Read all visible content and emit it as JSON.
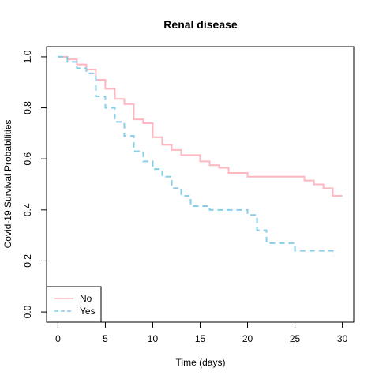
{
  "chart_data": {
    "type": "line",
    "title": "Renal disease",
    "xlabel": "Time (days)",
    "ylabel": "Covid-19 Survival Probabilities",
    "xlim": [
      -1.2,
      31.2
    ],
    "ylim": [
      -0.04,
      1.04
    ],
    "xticks": [
      0,
      5,
      10,
      15,
      20,
      25,
      30
    ],
    "xtick_labels": [
      "0",
      "5",
      "10",
      "15",
      "20",
      "25",
      "30"
    ],
    "yticks": [
      0.0,
      0.2,
      0.4,
      0.6,
      0.8,
      1.0
    ],
    "ytick_labels": [
      "0.0",
      "0.2",
      "0.4",
      "0.6",
      "0.8",
      "1.0"
    ],
    "step": true,
    "legend_position": "bottom-left",
    "series": [
      {
        "name": "No",
        "color": "#ffb6c1",
        "dash": "solid",
        "x": [
          0,
          1,
          2,
          3,
          4,
          5,
          6,
          7,
          8,
          9,
          10,
          11,
          12,
          13,
          15,
          16,
          17,
          18,
          20,
          26,
          27,
          28,
          29,
          30
        ],
        "y": [
          1.0,
          0.99,
          0.97,
          0.95,
          0.91,
          0.875,
          0.835,
          0.815,
          0.755,
          0.74,
          0.685,
          0.655,
          0.635,
          0.615,
          0.59,
          0.575,
          0.565,
          0.545,
          0.53,
          0.515,
          0.5,
          0.485,
          0.455,
          0.455
        ]
      },
      {
        "name": "Yes",
        "color": "#87ceeb",
        "dash": "dashed",
        "x": [
          0,
          1,
          2,
          3,
          4,
          5,
          6,
          7,
          8,
          9,
          10,
          11,
          12,
          13,
          14,
          16,
          20,
          21,
          22,
          25,
          29
        ],
        "y": [
          1.0,
          0.98,
          0.955,
          0.935,
          0.845,
          0.8,
          0.745,
          0.69,
          0.63,
          0.59,
          0.56,
          0.53,
          0.485,
          0.455,
          0.415,
          0.4,
          0.38,
          0.32,
          0.27,
          0.24,
          0.22
        ]
      }
    ]
  }
}
